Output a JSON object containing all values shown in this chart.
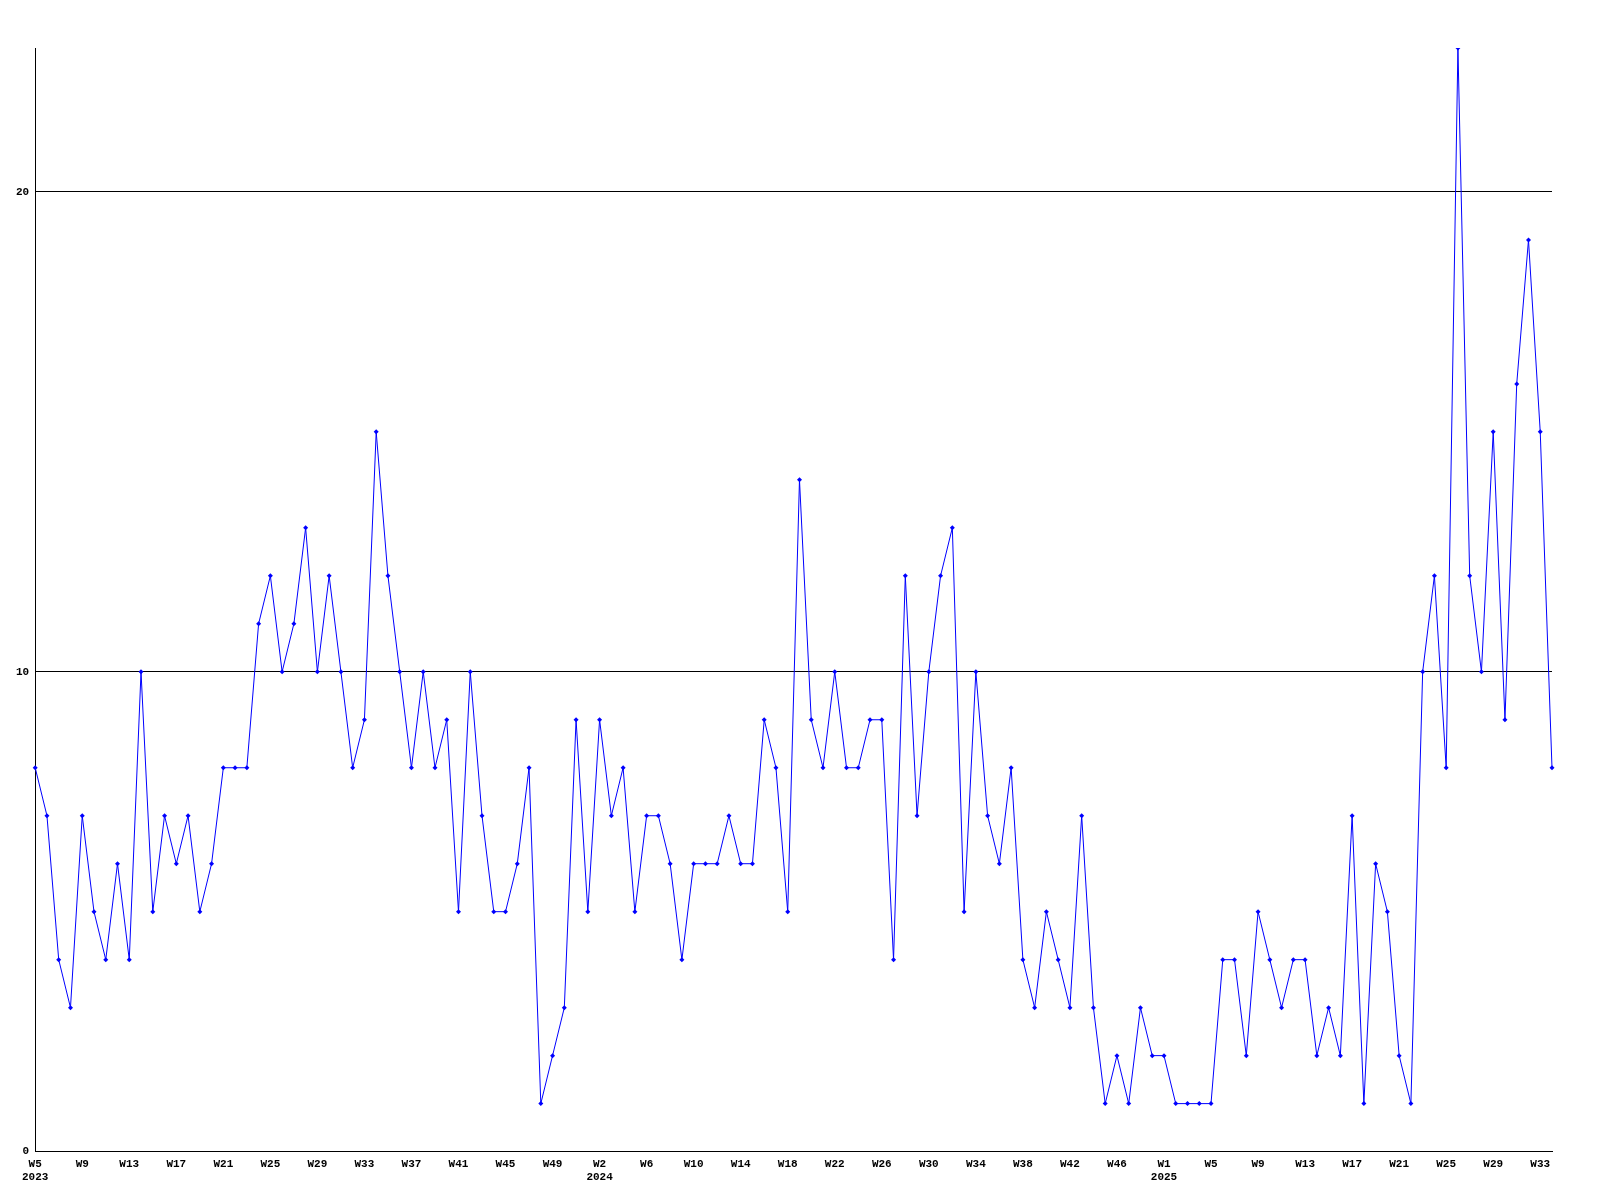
{
  "chart_data": {
    "type": "line",
    "categories": [
      "W5\n2023",
      null,
      null,
      null,
      "W9",
      null,
      null,
      null,
      "W13",
      null,
      null,
      null,
      "W17",
      null,
      null,
      null,
      "W21",
      null,
      null,
      null,
      "W25",
      null,
      null,
      null,
      "W29",
      null,
      null,
      null,
      "W33",
      null,
      null,
      null,
      "W37",
      null,
      null,
      null,
      "W41",
      null,
      null,
      null,
      "W45",
      null,
      null,
      null,
      "W49",
      null,
      null,
      null,
      "W2\n2024",
      null,
      null,
      null,
      "W6",
      null,
      null,
      null,
      "W10",
      null,
      null,
      null,
      "W14",
      null,
      null,
      null,
      "W18",
      null,
      null,
      null,
      "W22",
      null,
      null,
      null,
      "W26",
      null,
      null,
      null,
      "W30",
      null,
      null,
      null,
      "W34",
      null,
      null,
      null,
      "W38",
      null,
      null,
      null,
      "W42",
      null,
      null,
      null,
      "W46",
      null,
      null,
      null,
      "W1\n2025",
      null,
      null,
      null,
      "W5",
      null,
      null,
      null,
      "W9",
      null,
      null,
      null,
      "W13",
      null,
      null,
      null,
      "W17",
      null,
      null,
      null,
      "W21",
      null,
      null,
      null,
      "W25",
      null,
      null,
      null,
      "W29",
      null,
      null,
      null,
      "W33",
      null
    ],
    "series": [
      {
        "color": "#0000ff",
        "values": [
          8,
          7,
          4,
          3,
          7,
          5,
          4,
          6,
          4,
          10,
          5,
          7,
          6,
          7,
          5,
          6,
          8,
          8,
          8,
          11,
          12,
          10,
          11,
          13,
          10,
          12,
          10,
          8,
          9,
          15,
          12,
          10,
          8,
          10,
          8,
          9,
          5,
          10,
          7,
          5,
          5,
          6,
          8,
          1,
          2,
          3,
          9,
          5,
          9,
          7,
          8,
          5,
          7,
          7,
          6,
          4,
          6,
          6,
          6,
          7,
          6,
          6,
          9,
          8,
          5,
          14,
          9,
          8,
          10,
          8,
          8,
          9,
          9,
          4,
          12,
          7,
          10,
          12,
          13,
          5,
          10,
          7,
          6,
          8,
          4,
          3,
          5,
          4,
          3,
          7,
          3,
          1,
          2,
          1,
          3,
          2,
          2,
          1,
          1,
          1,
          1,
          4,
          4,
          2,
          5,
          4,
          3,
          4,
          4,
          2,
          3,
          2,
          7,
          1,
          6,
          5,
          2,
          1,
          10,
          12,
          8,
          23,
          12,
          10,
          15,
          9,
          16,
          19,
          15,
          8
        ]
      }
    ],
    "ylim": [
      0,
      23
    ],
    "yticks": [
      0,
      10,
      20
    ],
    "grid": "y",
    "legend": false,
    "marker": "diamond",
    "line_style": "solid"
  }
}
